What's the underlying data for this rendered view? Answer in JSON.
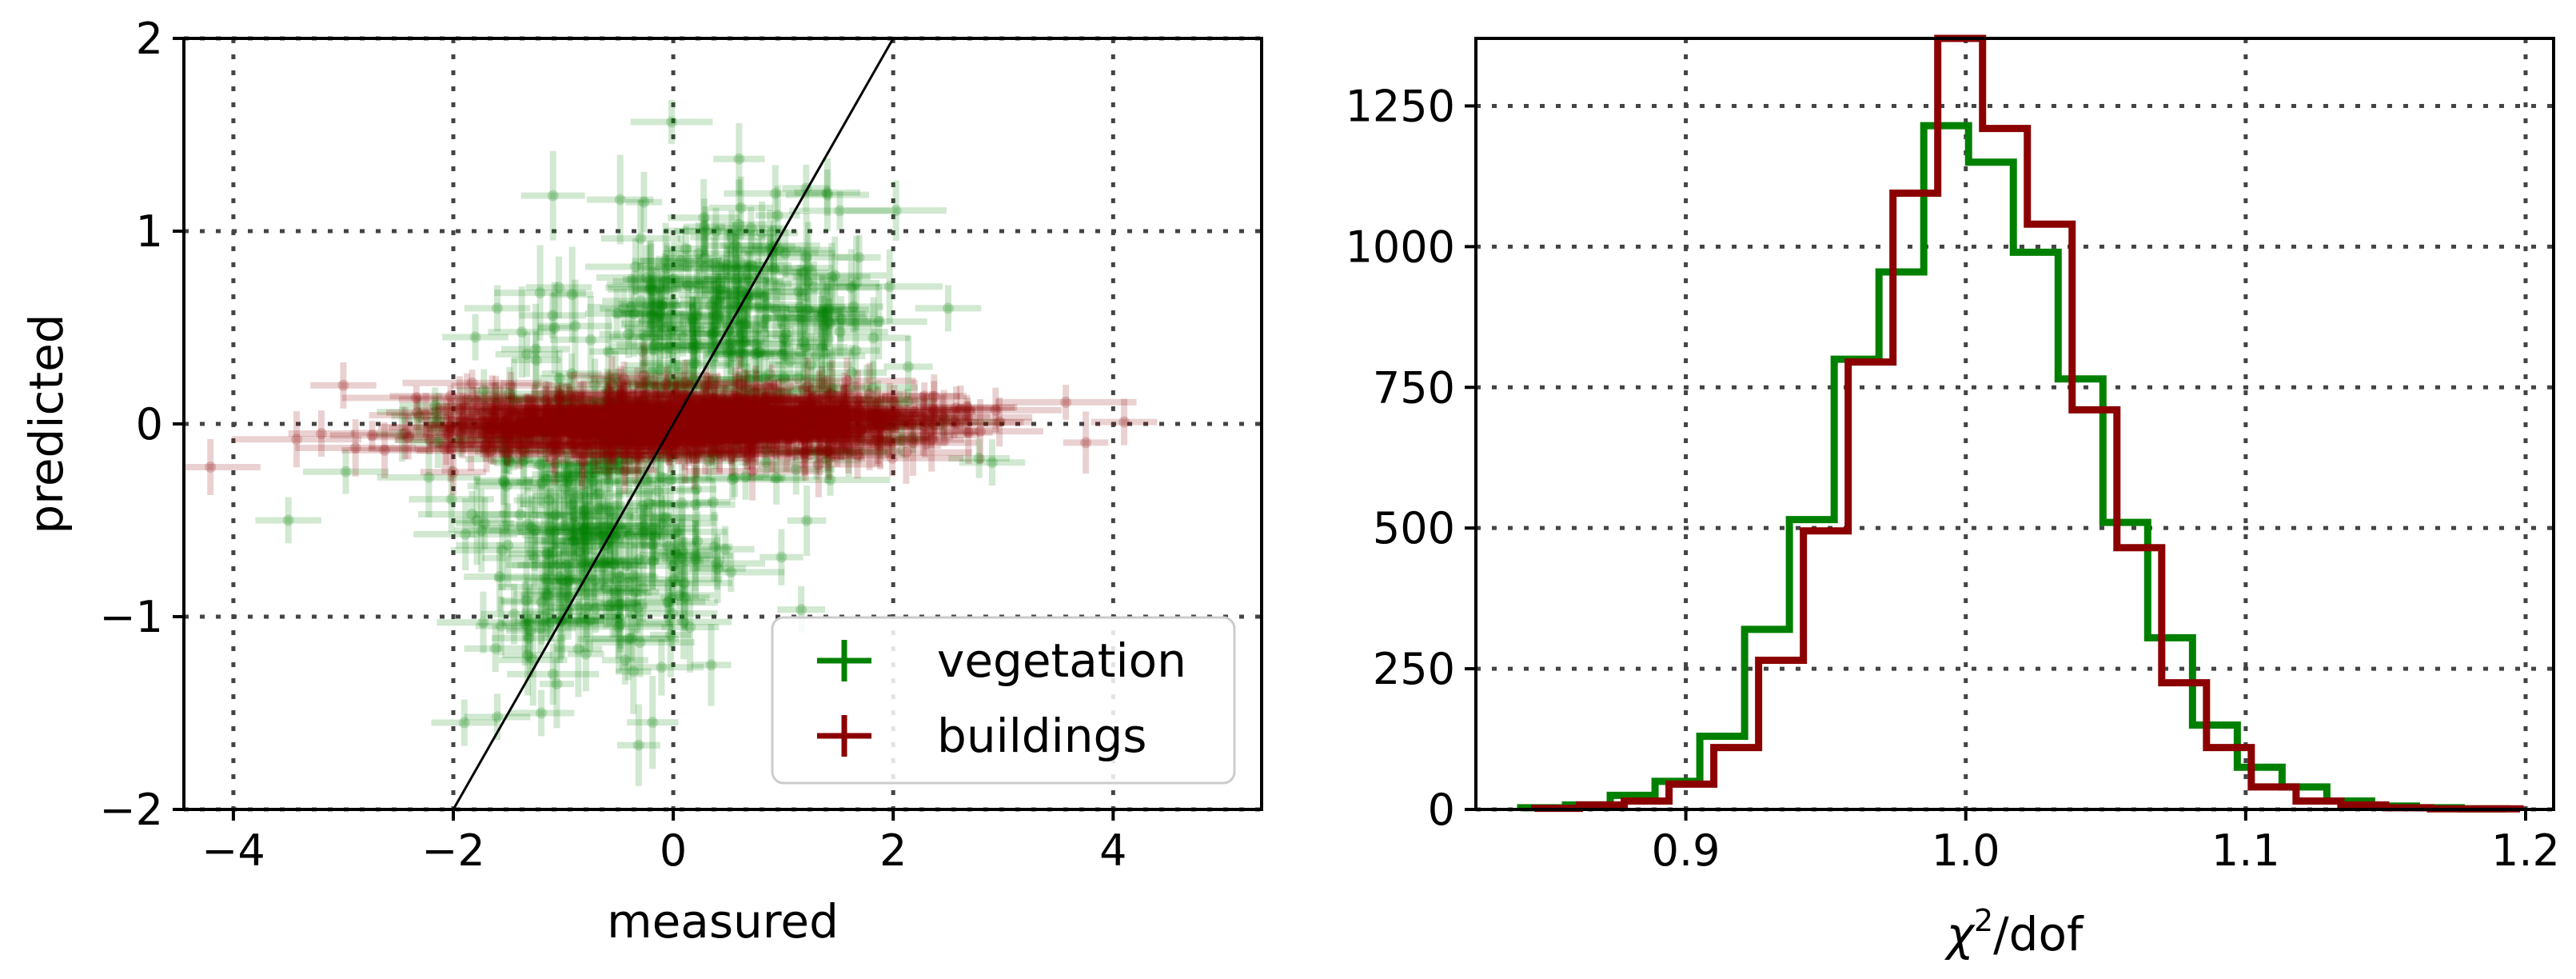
{
  "colors": {
    "vegetation": "#008000",
    "buildings": "#8b0000",
    "identity_line": "#000000",
    "grid": "#444444"
  },
  "chart_data": [
    {
      "type": "scatter",
      "subtype": "errorbar",
      "title": "",
      "xlabel": "measured",
      "ylabel": "predicted",
      "xlim": [
        -4.45,
        5.35
      ],
      "ylim": [
        -2,
        2
      ],
      "xticks": [
        -4,
        -2,
        0,
        2,
        4
      ],
      "xtick_labels": [
        "−4",
        "−2",
        "0",
        "2",
        "4"
      ],
      "yticks": [
        -2,
        -1,
        0,
        1,
        2
      ],
      "ytick_labels": [
        "−2",
        "−1",
        "0",
        "1",
        "2"
      ],
      "grid": true,
      "legend_position": "lower-right",
      "legend": [
        {
          "label": "vegetation",
          "series": "vegetation"
        },
        {
          "label": "buildings",
          "series": "buildings"
        }
      ],
      "reference_line": {
        "label": "y = x",
        "x": [
          -2,
          2
        ],
        "y": [
          -2,
          2
        ]
      },
      "series": [
        {
          "name": "vegetation",
          "n_points": 520,
          "clusters": [
            {
              "x_center": 0.6,
              "x_spread": 0.7,
              "y_center": 0.6,
              "y_spread": 0.3,
              "fraction": 0.4,
              "xerr": [
                0.15,
                0.5
              ],
              "yerr": [
                0.1,
                0.25
              ]
            },
            {
              "x_center": -0.6,
              "x_spread": 0.6,
              "y_center": -0.65,
              "y_spread": 0.35,
              "fraction": 0.4,
              "xerr": [
                0.15,
                0.5
              ],
              "yerr": [
                0.1,
                0.25
              ]
            },
            {
              "x_center": 0.0,
              "x_spread": 1.2,
              "y_center": 0.0,
              "y_spread": 0.15,
              "fraction": 0.2,
              "xerr": [
                0.15,
                0.6
              ],
              "yerr": [
                0.05,
                0.15
              ]
            }
          ],
          "notable_points": [
            [
              -1.6,
              -1.52
            ],
            [
              -1.9,
              -1.55
            ],
            [
              -1.2,
              -1.5
            ],
            [
              -3.5,
              -0.5
            ],
            [
              2.9,
              -0.2
            ],
            [
              -1.8,
              0.45
            ],
            [
              -1.6,
              0.6
            ],
            [
              2.5,
              0.6
            ],
            [
              1.4,
              1.2
            ]
          ]
        },
        {
          "name": "buildings",
          "n_points": 700,
          "clusters": [
            {
              "x_center": 0.1,
              "x_spread": 1.1,
              "y_center": 0.0,
              "y_spread": 0.08,
              "fraction": 1.0,
              "xerr": [
                0.2,
                0.7
              ],
              "yerr": [
                0.05,
                0.18
              ]
            }
          ],
          "notable_points": [
            [
              -3.0,
              0.2
            ],
            [
              -3.2,
              -0.05
            ],
            [
              4.1,
              0.01
            ],
            [
              -2.0,
              -0.25
            ]
          ]
        }
      ]
    },
    {
      "type": "histogram",
      "subtype": "step",
      "title": "",
      "xlabel": "χ²/dof",
      "xlabel_main": "χ",
      "xlabel_sup": "2",
      "xlabel_rest": "/dof",
      "ylabel": "",
      "xlim": [
        0.825,
        1.21
      ],
      "ylim": [
        0,
        1370
      ],
      "xticks": [
        0.9,
        1.0,
        1.1,
        1.2
      ],
      "xtick_labels": [
        "0.9",
        "1.0",
        "1.1",
        "1.2"
      ],
      "yticks": [
        0,
        250,
        500,
        750,
        1000,
        1250
      ],
      "ytick_labels": [
        "0",
        "250",
        "500",
        "750",
        "1000",
        "1250"
      ],
      "grid": true,
      "series": [
        {
          "name": "vegetation",
          "bin_edges": [
            0.841,
            0.857,
            0.873,
            0.889,
            0.905,
            0.921,
            0.937,
            0.953,
            0.969,
            0.985,
            1.001,
            1.017,
            1.033,
            1.049,
            1.065,
            1.081,
            1.097,
            1.113,
            1.129,
            1.145,
            1.161,
            1.177,
            1.193
          ],
          "counts": [
            3,
            8,
            25,
            50,
            130,
            320,
            515,
            800,
            955,
            1215,
            1150,
            990,
            765,
            510,
            305,
            150,
            75,
            40,
            15,
            6,
            3,
            1
          ]
        },
        {
          "name": "buildings",
          "bin_edges": [
            0.846,
            0.862,
            0.878,
            0.894,
            0.91,
            0.926,
            0.942,
            0.958,
            0.974,
            0.99,
            1.006,
            1.022,
            1.038,
            1.054,
            1.07,
            1.086,
            1.102,
            1.118,
            1.134,
            1.15,
            1.166,
            1.182,
            1.198
          ],
          "counts": [
            2,
            8,
            15,
            45,
            110,
            265,
            495,
            795,
            1095,
            1370,
            1210,
            1040,
            710,
            465,
            225,
            110,
            40,
            15,
            8,
            3,
            1,
            1
          ]
        }
      ]
    }
  ]
}
